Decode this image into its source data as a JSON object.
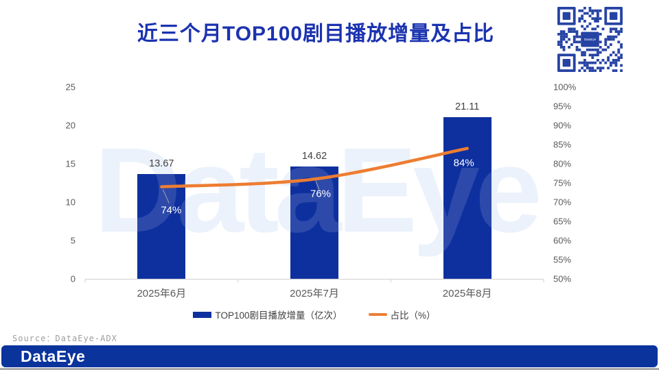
{
  "title": "近三个月TOP100剧目播放增量及占比",
  "source": "Source：DataEye-ADX",
  "footer": {
    "logo_text": "DataEye"
  },
  "watermark": "DataEye",
  "qr": {
    "center_label": "DataEye"
  },
  "colors": {
    "title": "#1b33b0",
    "bar": "#0e309f",
    "line": "#ed7d31",
    "axis_text": "#595959",
    "value_label": "#404040",
    "pct_label": "#ffffff",
    "axis_line": "#d6d6d6",
    "leader_line": "#a6a6a6",
    "footer_bg": "#0a339c",
    "qr_module": "#2643a4",
    "watermark_light": "rgba(215,227,247,0.55)",
    "watermark_on_bar": "rgba(255,255,255,0.13)",
    "source_text": "#9d9d9d"
  },
  "chart_data": {
    "type": "combo bar+line",
    "title": "近三个月TOP100剧目播放增量及占比",
    "categories": [
      "2025年6月",
      "2025年7月",
      "2025年8月"
    ],
    "series": [
      {
        "name": "TOP100剧目播放增量（亿次）",
        "type": "bar",
        "axis": "left",
        "values": [
          13.67,
          14.62,
          21.11
        ],
        "labels": [
          "13.67",
          "14.62",
          "21.11"
        ]
      },
      {
        "name": "占比（%）",
        "type": "line",
        "axis": "right",
        "values": [
          74,
          76,
          84
        ],
        "labels": [
          "74%",
          "76%",
          "84%"
        ]
      }
    ],
    "left_axis": {
      "min": 0,
      "max": 25,
      "ticks": [
        "25",
        "20",
        "15",
        "10",
        "5",
        "0"
      ]
    },
    "right_axis": {
      "min": 50,
      "max": 100,
      "ticks": [
        "100%",
        "95%",
        "90%",
        "85%",
        "80%",
        "75%",
        "70%",
        "65%",
        "60%",
        "55%",
        "50%"
      ]
    },
    "grid": false,
    "legend": [
      "TOP100剧目播放增量（亿次）",
      "占比（%）"
    ],
    "legend_position": "bottom"
  }
}
